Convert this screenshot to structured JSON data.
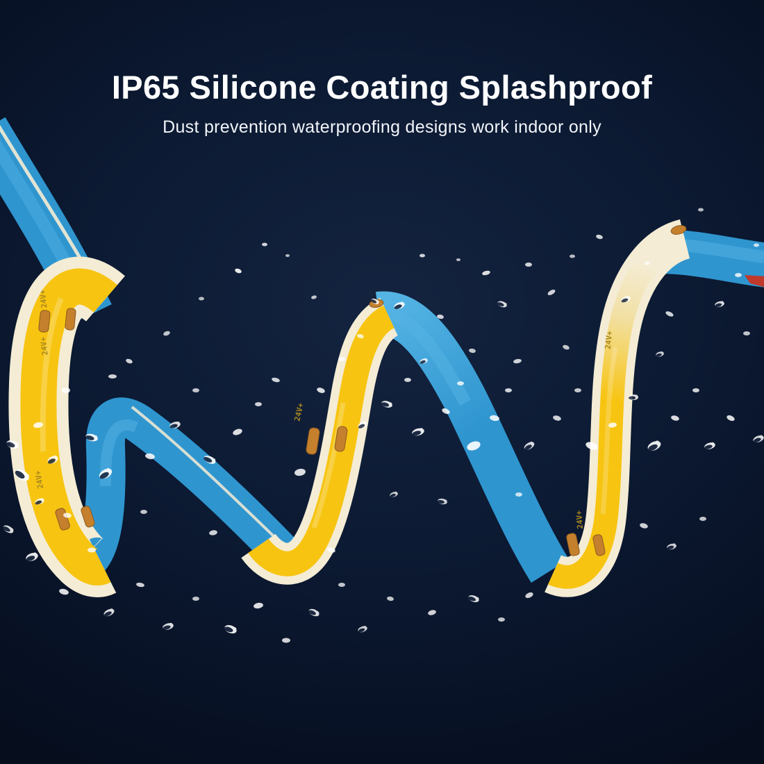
{
  "hero": {
    "title": "IP65 Silicone Coating Splashproof",
    "subtitle": "Dust prevention waterproofing designs work indoor only"
  },
  "strip": {
    "marking": "24V+"
  },
  "colors": {
    "background_center": "#14233f",
    "background_mid": "#0c1a33",
    "background_dark": "#081226",
    "background_edge": "#050c1a",
    "title_color": "#ffffff",
    "subtitle_color": "#f2f5fa",
    "strip_yellow": "#f7c411",
    "strip_yellow_pale": "#f2e0a4",
    "strip_cream": "#f4ecd4",
    "strip_blue": "#2f95cf",
    "strip_blue_light": "#55b4e4",
    "copper_pad": "#c5802d",
    "marking_color": "#a9881f",
    "red_tip": "#c0392b",
    "splash_white": "#ffffff"
  },
  "splashes": [
    [
      343,
      390,
      5,
      3,
      20,
      0.9,
      0
    ],
    [
      381,
      352,
      4,
      2.5,
      0,
      0.8,
      0
    ],
    [
      414,
      368,
      3,
      2,
      0,
      0.7,
      0
    ],
    [
      452,
      428,
      4,
      2.5,
      -15,
      0.75,
      0
    ],
    [
      540,
      434,
      6,
      3.5,
      25,
      0.85,
      1
    ],
    [
      575,
      440,
      8,
      4.5,
      -20,
      0.9,
      1
    ],
    [
      608,
      368,
      4,
      2.5,
      0,
      0.8,
      0
    ],
    [
      634,
      456,
      5,
      3,
      10,
      0.8,
      0
    ],
    [
      660,
      374,
      3,
      2,
      0,
      0.7,
      0
    ],
    [
      700,
      393,
      6,
      3,
      -15,
      0.85,
      0
    ],
    [
      723,
      438,
      7,
      4,
      20,
      0.85,
      1
    ],
    [
      761,
      381,
      5,
      3,
      0,
      0.8,
      0
    ],
    [
      794,
      421,
      6,
      3,
      -30,
      0.8,
      0
    ],
    [
      824,
      369,
      4,
      2.5,
      0,
      0.7,
      0
    ],
    [
      863,
      341,
      5,
      3,
      15,
      0.8,
      0
    ],
    [
      901,
      431,
      7,
      4,
      -20,
      0.85,
      1
    ],
    [
      932,
      379,
      4,
      2.5,
      0,
      0.7,
      0
    ],
    [
      964,
      452,
      6,
      3,
      25,
      0.8,
      0
    ],
    [
      1009,
      302,
      4,
      2.5,
      0,
      0.7,
      0
    ],
    [
      1036,
      438,
      7,
      4,
      -15,
      0.85,
      1
    ],
    [
      1063,
      396,
      5,
      3,
      0,
      0.8,
      0
    ],
    [
      1089,
      353,
      4,
      2.5,
      0,
      0.75,
      0
    ],
    [
      519,
      484,
      5,
      3,
      15,
      0.75,
      0
    ],
    [
      610,
      520,
      6,
      3.5,
      -20,
      0.8,
      1
    ],
    [
      680,
      505,
      5,
      3,
      10,
      0.75,
      0
    ],
    [
      745,
      520,
      6,
      3,
      -10,
      0.8,
      0
    ],
    [
      815,
      500,
      5,
      3,
      20,
      0.75,
      0
    ],
    [
      950,
      510,
      6,
      3.5,
      -15,
      0.8,
      1
    ],
    [
      1075,
      480,
      5,
      3,
      0,
      0.75,
      0
    ],
    [
      290,
      430,
      4,
      2.5,
      0,
      0.7,
      0
    ],
    [
      240,
      480,
      5,
      3,
      -20,
      0.75,
      0
    ],
    [
      18,
      640,
      9,
      5.5,
      20,
      0.9,
      1
    ],
    [
      55,
      612,
      7,
      4,
      -10,
      0.85,
      0
    ],
    [
      95,
      562,
      6,
      4,
      0,
      0.8,
      0
    ],
    [
      32,
      684,
      11,
      6.5,
      35,
      0.95,
      1
    ],
    [
      76,
      662,
      8,
      5,
      -25,
      0.85,
      1
    ],
    [
      132,
      630,
      9,
      5,
      15,
      0.9,
      1
    ],
    [
      162,
      542,
      6,
      3,
      0,
      0.8,
      0
    ],
    [
      186,
      520,
      5,
      3,
      20,
      0.8,
      0
    ],
    [
      152,
      682,
      10,
      6,
      -30,
      0.9,
      1
    ],
    [
      216,
      657,
      7,
      4,
      10,
      0.85,
      0
    ],
    [
      252,
      612,
      8,
      4.5,
      -15,
      0.85,
      1
    ],
    [
      282,
      562,
      5,
      3,
      0,
      0.75,
      0
    ],
    [
      302,
      662,
      9,
      5,
      25,
      0.9,
      1
    ],
    [
      342,
      622,
      7,
      4,
      -20,
      0.85,
      0
    ],
    [
      372,
      582,
      5,
      3,
      0,
      0.8,
      0
    ],
    [
      397,
      547,
      6,
      3,
      15,
      0.8,
      0
    ],
    [
      432,
      680,
      8,
      5,
      -10,
      0.85,
      0
    ],
    [
      462,
      562,
      6,
      3.5,
      20,
      0.85,
      0
    ],
    [
      492,
      517,
      5,
      3,
      0,
      0.8,
      0
    ],
    [
      522,
      612,
      7,
      4,
      -25,
      0.85,
      1
    ],
    [
      557,
      582,
      8,
      4.5,
      15,
      0.9,
      1
    ],
    [
      587,
      547,
      5,
      3,
      0,
      0.8,
      0
    ],
    [
      602,
      622,
      9,
      5,
      -15,
      0.9,
      1
    ],
    [
      642,
      592,
      6,
      3.5,
      25,
      0.85,
      0
    ],
    [
      663,
      552,
      5,
      3,
      0,
      0.8,
      0
    ],
    [
      682,
      642,
      10,
      6,
      -20,
      0.9,
      0
    ],
    [
      712,
      602,
      7,
      4,
      10,
      0.85,
      0
    ],
    [
      732,
      562,
      5,
      3,
      0,
      0.8,
      0
    ],
    [
      762,
      642,
      8,
      4.5,
      -30,
      0.85,
      1
    ],
    [
      802,
      602,
      6,
      3.5,
      15,
      0.8,
      0
    ],
    [
      832,
      562,
      5,
      3,
      0,
      0.75,
      0
    ],
    [
      852,
      642,
      9,
      5,
      20,
      0.9,
      0
    ],
    [
      882,
      612,
      6,
      3.5,
      -10,
      0.85,
      0
    ],
    [
      912,
      572,
      7,
      4,
      0,
      0.85,
      1
    ],
    [
      942,
      642,
      10,
      6,
      -25,
      0.9,
      1
    ],
    [
      972,
      602,
      6,
      3.5,
      15,
      0.85,
      0
    ],
    [
      1002,
      562,
      5,
      3,
      0,
      0.8,
      0
    ],
    [
      1022,
      642,
      8,
      4.5,
      -15,
      0.9,
      1
    ],
    [
      1052,
      602,
      6,
      3.5,
      25,
      0.85,
      0
    ],
    [
      1092,
      632,
      8,
      4.5,
      -20,
      0.85,
      1
    ],
    [
      12,
      762,
      8,
      4.5,
      30,
      0.85,
      1
    ],
    [
      46,
      802,
      9,
      5.5,
      -20,
      0.9,
      1
    ],
    [
      92,
      852,
      7,
      4,
      15,
      0.85,
      0
    ],
    [
      132,
      792,
      6,
      3.5,
      0,
      0.8,
      0
    ],
    [
      157,
      882,
      8,
      4.5,
      -25,
      0.85,
      1
    ],
    [
      202,
      842,
      6,
      3,
      10,
      0.8,
      0
    ],
    [
      242,
      902,
      8,
      4.5,
      -15,
      0.85,
      1
    ],
    [
      282,
      862,
      5,
      3,
      0,
      0.75,
      0
    ],
    [
      332,
      906,
      9,
      5.5,
      20,
      0.9,
      1
    ],
    [
      372,
      872,
      7,
      4,
      -10,
      0.85,
      0
    ],
    [
      412,
      922,
      6,
      3.5,
      0,
      0.8,
      0
    ],
    [
      452,
      882,
      8,
      4.5,
      25,
      0.85,
      1
    ],
    [
      492,
      842,
      5,
      3,
      0,
      0.75,
      0
    ],
    [
      522,
      906,
      7,
      4,
      -20,
      0.8,
      1
    ],
    [
      562,
      862,
      5,
      3,
      10,
      0.75,
      0
    ],
    [
      622,
      882,
      6,
      3.5,
      -15,
      0.8,
      0
    ],
    [
      682,
      862,
      8,
      4.5,
      20,
      0.85,
      1
    ],
    [
      722,
      892,
      5,
      3,
      0,
      0.75,
      0
    ],
    [
      762,
      857,
      6,
      3.5,
      -25,
      0.8,
      0
    ],
    [
      927,
      757,
      6,
      3.5,
      15,
      0.8,
      0
    ],
    [
      967,
      787,
      7,
      4,
      -15,
      0.8,
      1
    ],
    [
      1012,
      747,
      5,
      3,
      0,
      0.75,
      0
    ],
    [
      57,
      722,
      7,
      4,
      -20,
      0.85,
      1
    ],
    [
      97,
      742,
      6,
      3.5,
      10,
      0.8,
      0
    ],
    [
      207,
      737,
      5,
      3,
      0,
      0.75,
      0
    ],
    [
      307,
      767,
      6,
      3.5,
      -10,
      0.8,
      0
    ],
    [
      477,
      792,
      6,
      3.5,
      15,
      0.8,
      0
    ],
    [
      567,
      712,
      6,
      3.5,
      -20,
      0.8,
      1
    ],
    [
      637,
      722,
      7,
      4,
      10,
      0.8,
      1
    ],
    [
      747,
      712,
      5,
      3,
      0,
      0.75,
      0
    ]
  ]
}
